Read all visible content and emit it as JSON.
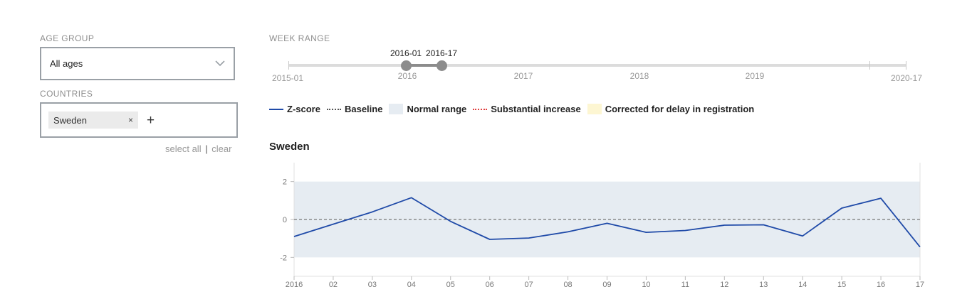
{
  "filters": {
    "age_group": {
      "label": "AGE GROUP",
      "value": "All ages"
    },
    "countries": {
      "label": "COUNTRIES",
      "tags": [
        "Sweden"
      ],
      "select_all": "select all",
      "separator": "|",
      "clear": "clear"
    }
  },
  "week_range": {
    "label": "WEEK RANGE",
    "start_label": "2016-01",
    "end_label": "2016-17",
    "ticks": [
      "2015-01",
      "2016",
      "2017",
      "2018",
      "2019",
      "2020-17"
    ]
  },
  "legend": [
    {
      "label": "Z-score",
      "swatch": "line",
      "color": "#1f4aa8"
    },
    {
      "label": "Baseline",
      "swatch": "dash",
      "color": "#555555"
    },
    {
      "label": "Normal range",
      "swatch": "box",
      "color": "#e6ecf2"
    },
    {
      "label": "Substantial increase",
      "swatch": "red",
      "color": "#e04040"
    },
    {
      "label": "Corrected for delay in registration",
      "swatch": "box",
      "color": "#fdf6d2"
    }
  ],
  "chart_title": "Sweden",
  "chart_data": {
    "type": "line",
    "title": "Sweden",
    "categories": [
      "2016",
      "02",
      "03",
      "04",
      "05",
      "06",
      "07",
      "08",
      "09",
      "10",
      "11",
      "12",
      "13",
      "14",
      "15",
      "16",
      "17"
    ],
    "series": [
      {
        "name": "Z-score",
        "color": "#1f4aa8",
        "values": [
          -0.9,
          -0.25,
          0.4,
          1.15,
          -0.1,
          -1.05,
          -0.98,
          -0.65,
          -0.2,
          -0.68,
          -0.58,
          -0.3,
          -0.28,
          -0.87,
          0.6,
          1.12,
          -1.45
        ]
      }
    ],
    "baseline": 0,
    "normal_range": [
      -2,
      2
    ],
    "ylim": [
      -3,
      3
    ],
    "yticks": [
      2,
      0,
      -2
    ],
    "grid": false
  }
}
